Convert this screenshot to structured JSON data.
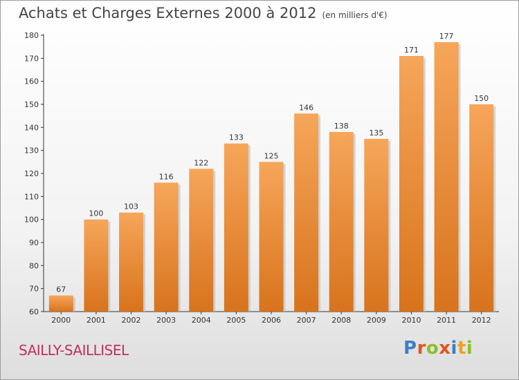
{
  "header": {
    "title": "Achats et Charges Externes 2000 à 2012",
    "unit": "(en milliers d'€)"
  },
  "footer": {
    "commune": "SAILLY-SAILLISEL",
    "logo": "Proxiti"
  },
  "colors": {
    "bar_top": "#f6a65a",
    "bar_bottom": "#d8731c",
    "axis": "#333333",
    "grid": "#bbbbbb"
  },
  "chart_data": {
    "type": "bar",
    "title": "Achats et Charges Externes 2000 à 2012",
    "subtitle": "(en milliers d'€)",
    "xlabel": "",
    "ylabel": "",
    "categories": [
      "2000",
      "2001",
      "2002",
      "2003",
      "2004",
      "2005",
      "2006",
      "2007",
      "2008",
      "2009",
      "2010",
      "2011",
      "2012"
    ],
    "values": [
      67,
      100,
      103,
      116,
      122,
      133,
      125,
      146,
      138,
      135,
      171,
      177,
      150
    ],
    "ylim": [
      60,
      180
    ],
    "yticks": [
      60,
      70,
      80,
      90,
      100,
      110,
      120,
      130,
      140,
      150,
      160,
      170,
      180
    ],
    "grid": false,
    "legend": "none"
  }
}
